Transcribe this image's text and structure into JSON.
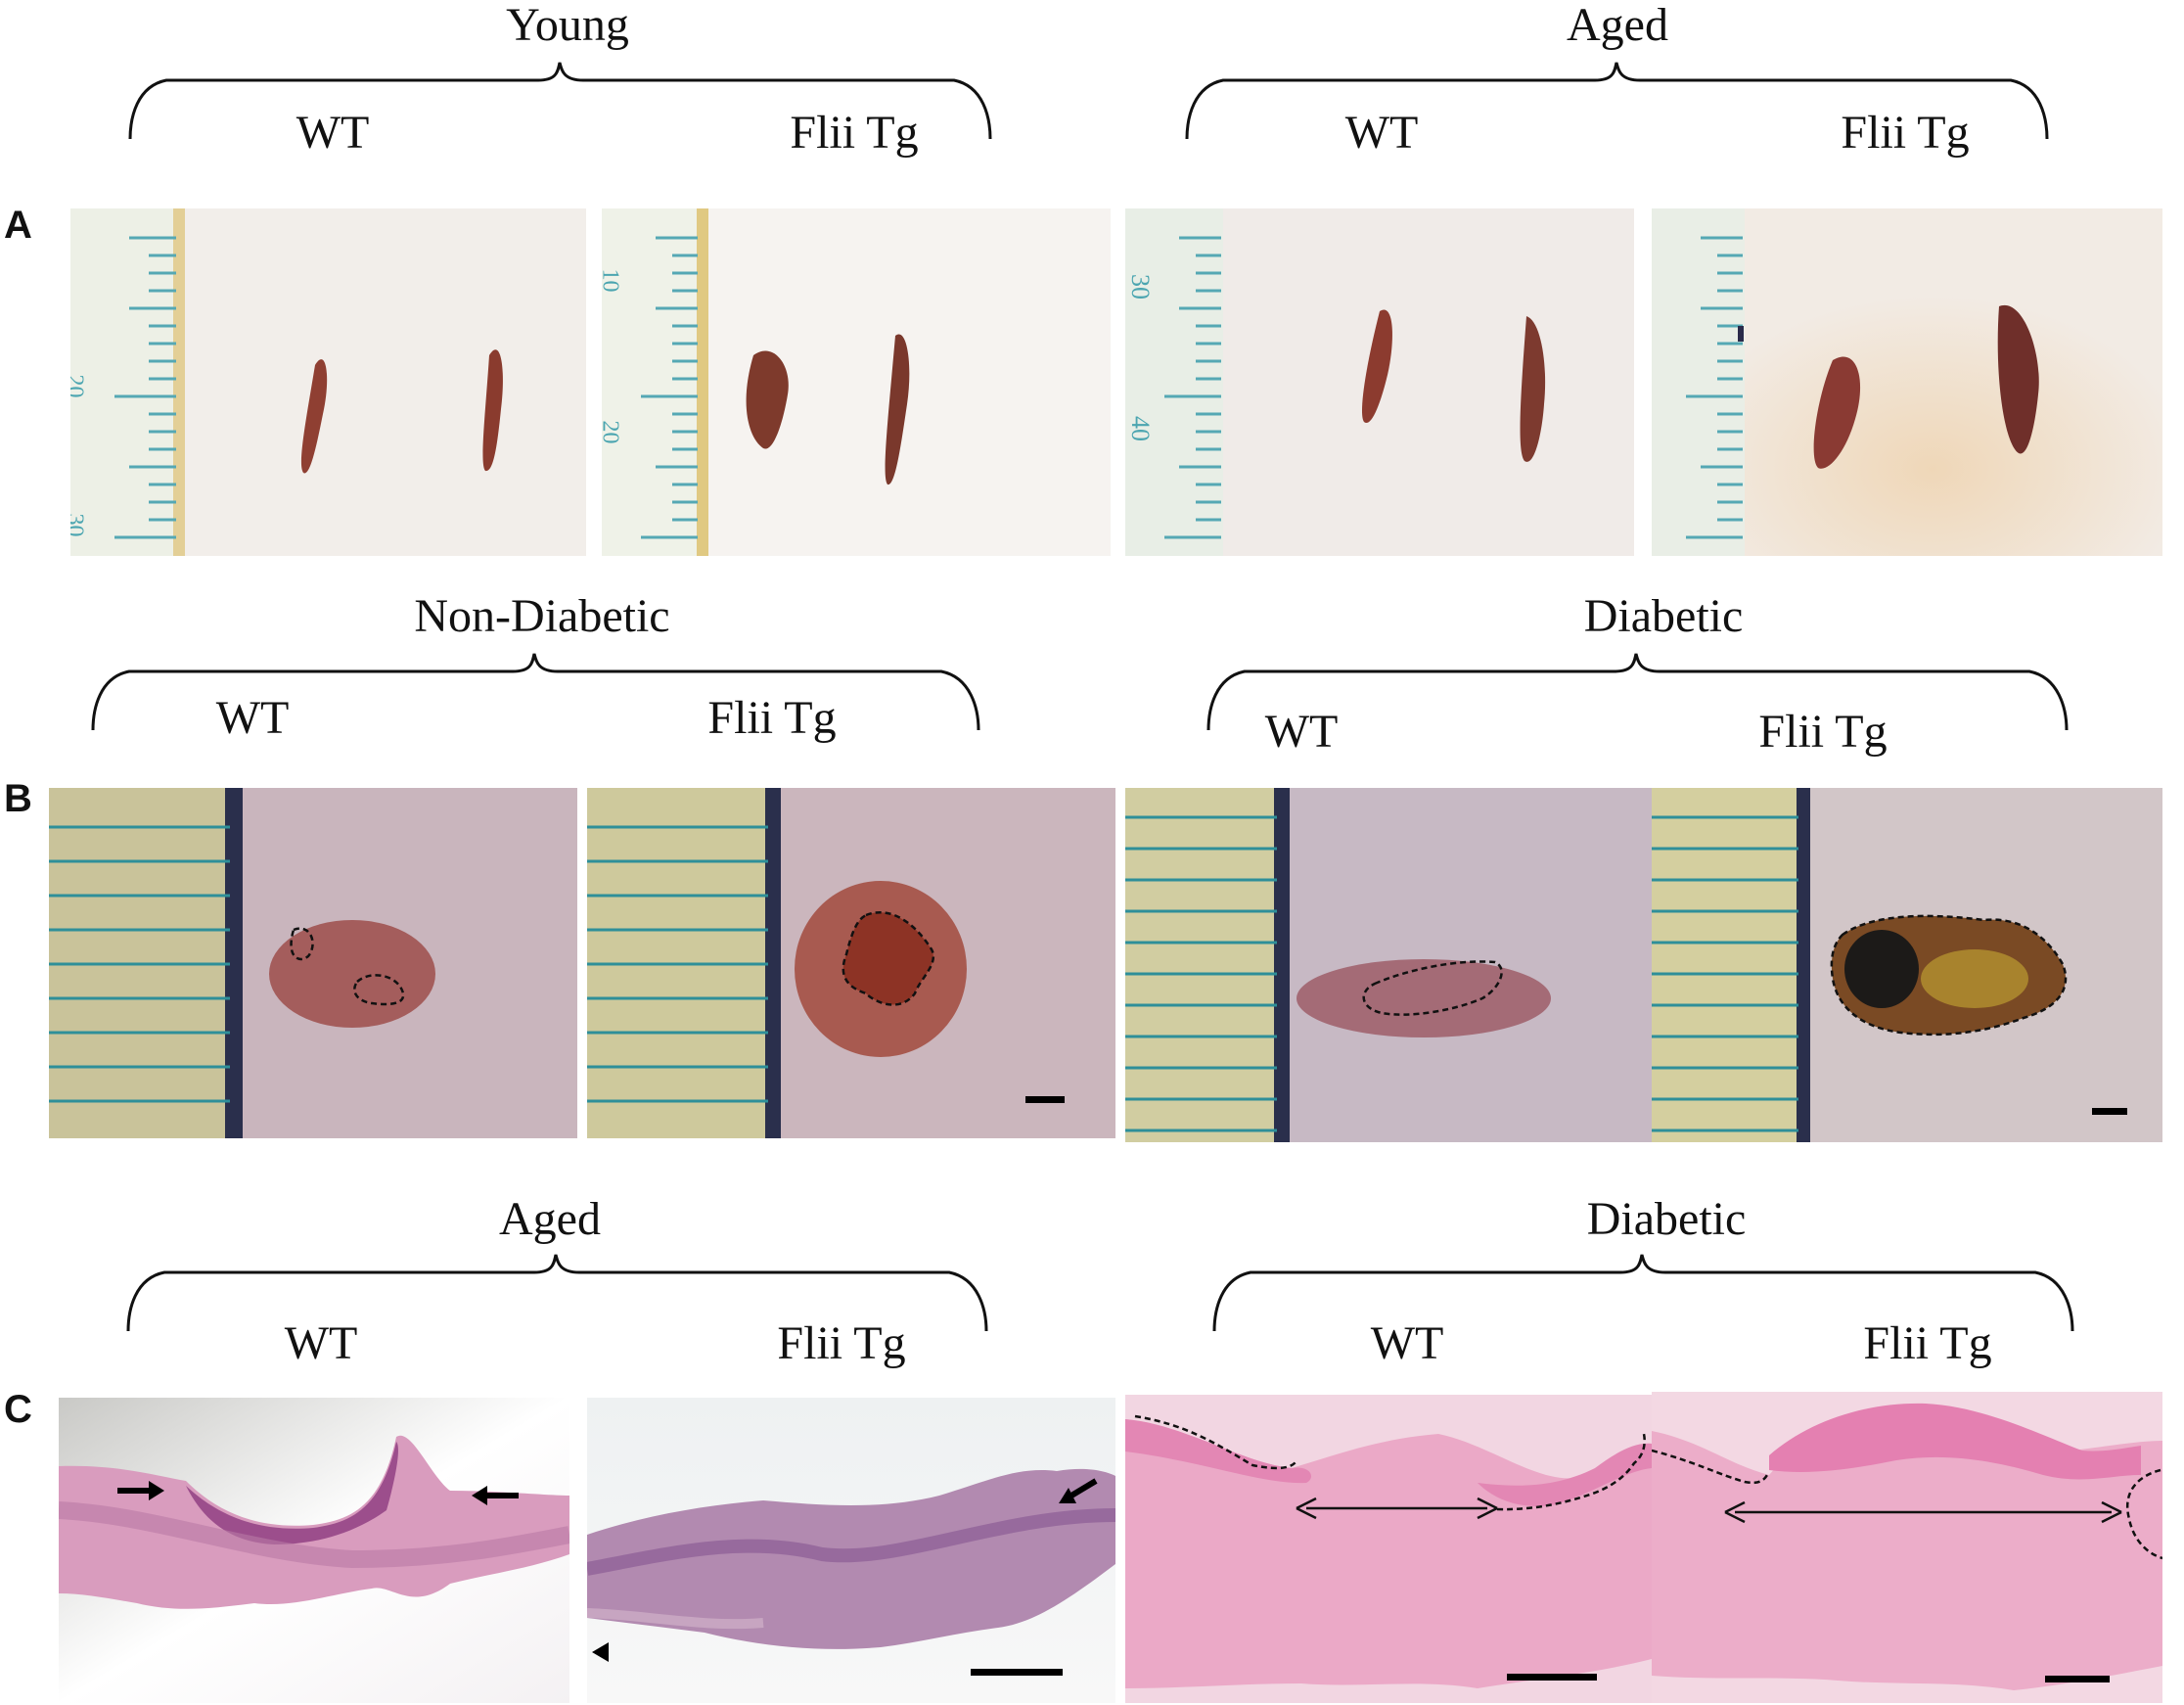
{
  "figure": {
    "panel_letters": [
      "A",
      "B",
      "C"
    ],
    "row_a": {
      "groups": [
        {
          "title": "Young",
          "labels": [
            "WT",
            "Flii Tg"
          ]
        },
        {
          "title": "Aged",
          "labels": [
            "WT",
            "Flii Tg"
          ]
        }
      ],
      "ruler_numbers": [
        "20",
        "30",
        "10",
        "20",
        "30",
        "40"
      ]
    },
    "row_b": {
      "groups": [
        {
          "title": "Non-Diabetic",
          "labels": [
            "WT",
            "Flii Tg"
          ]
        },
        {
          "title": "Diabetic",
          "labels": [
            "WT",
            "Flii Tg"
          ]
        }
      ]
    },
    "row_c": {
      "groups": [
        {
          "title": "Aged",
          "labels": [
            "WT",
            "Flii Tg"
          ]
        },
        {
          "title": "Diabetic",
          "labels": [
            "WT",
            "Flii Tg"
          ]
        }
      ]
    }
  },
  "colors": {
    "skin_white": "#f3efec",
    "wound_red": "#8a3a2e",
    "ruler_cream": "#efeccf",
    "ruler_tick": "#3f9aa3",
    "skin_pink": "#cbb2b8",
    "histo_pink": "#e6a2bd",
    "histo_purple": "#b56f9f"
  }
}
